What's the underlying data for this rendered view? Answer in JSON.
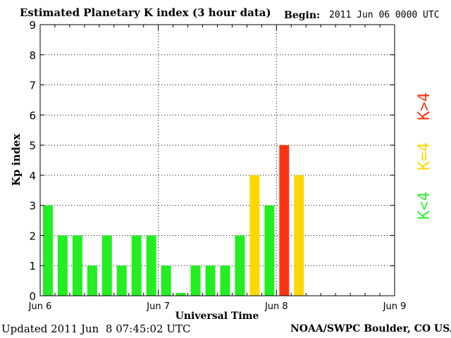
{
  "header": {
    "title": "Estimated Planetary K index (3 hour data)",
    "begin_label": "Begin:",
    "begin_value": "2011 Jun 06 0000 UTC"
  },
  "footer": {
    "updated": "Updated 2011 Jun  8 07:45:02 UTC",
    "credit": "NOAA/SWPC Boulder, CO USA"
  },
  "legend": [
    {
      "label": "K<4",
      "color": "#33ee33"
    },
    {
      "label": "K=4",
      "color": "#ffd700"
    },
    {
      "label": "K>4",
      "color": "#ff3311"
    }
  ],
  "colors": {
    "low": "#22ee22",
    "equal": "#ffd700",
    "high": "#ff3311"
  },
  "chart_data": {
    "type": "bar",
    "title": "Estimated Planetary K index (3 hour data)",
    "xlabel": "Universal Time",
    "ylabel": "Kp index",
    "ylim": [
      0,
      9
    ],
    "yticks": [
      "0",
      "1",
      "2",
      "3",
      "4",
      "5",
      "6",
      "7",
      "8",
      "9"
    ],
    "xticks": [
      "Jun 6",
      "Jun 7",
      "Jun 8",
      "Jun 9"
    ],
    "grid": true,
    "categories": [
      "Jun 6 00",
      "Jun 6 03",
      "Jun 6 06",
      "Jun 6 09",
      "Jun 6 12",
      "Jun 6 15",
      "Jun 6 18",
      "Jun 6 21",
      "Jun 7 00",
      "Jun 7 03",
      "Jun 7 06",
      "Jun 7 09",
      "Jun 7 12",
      "Jun 7 15",
      "Jun 7 18",
      "Jun 7 21",
      "Jun 8 00",
      "Jun 8 03"
    ],
    "values": [
      3,
      2,
      2,
      1,
      2,
      1,
      2,
      2,
      1,
      0,
      1,
      1,
      1,
      2,
      4,
      3,
      5,
      4
    ]
  }
}
